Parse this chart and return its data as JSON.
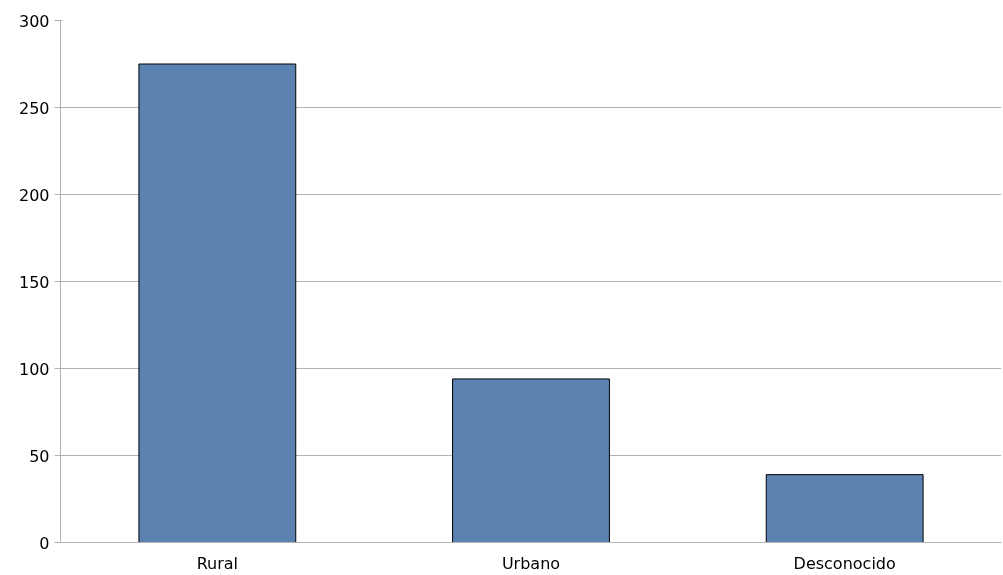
{
  "chart_data": {
    "type": "bar",
    "categories": [
      "Rural",
      "Urbano",
      "Desconocido"
    ],
    "values": [
      275,
      94,
      39
    ],
    "color": "#5b82b0",
    "ylim": [
      0,
      300
    ],
    "yticks": [
      0,
      50,
      100,
      150,
      200,
      250,
      300
    ],
    "grid": "y"
  }
}
